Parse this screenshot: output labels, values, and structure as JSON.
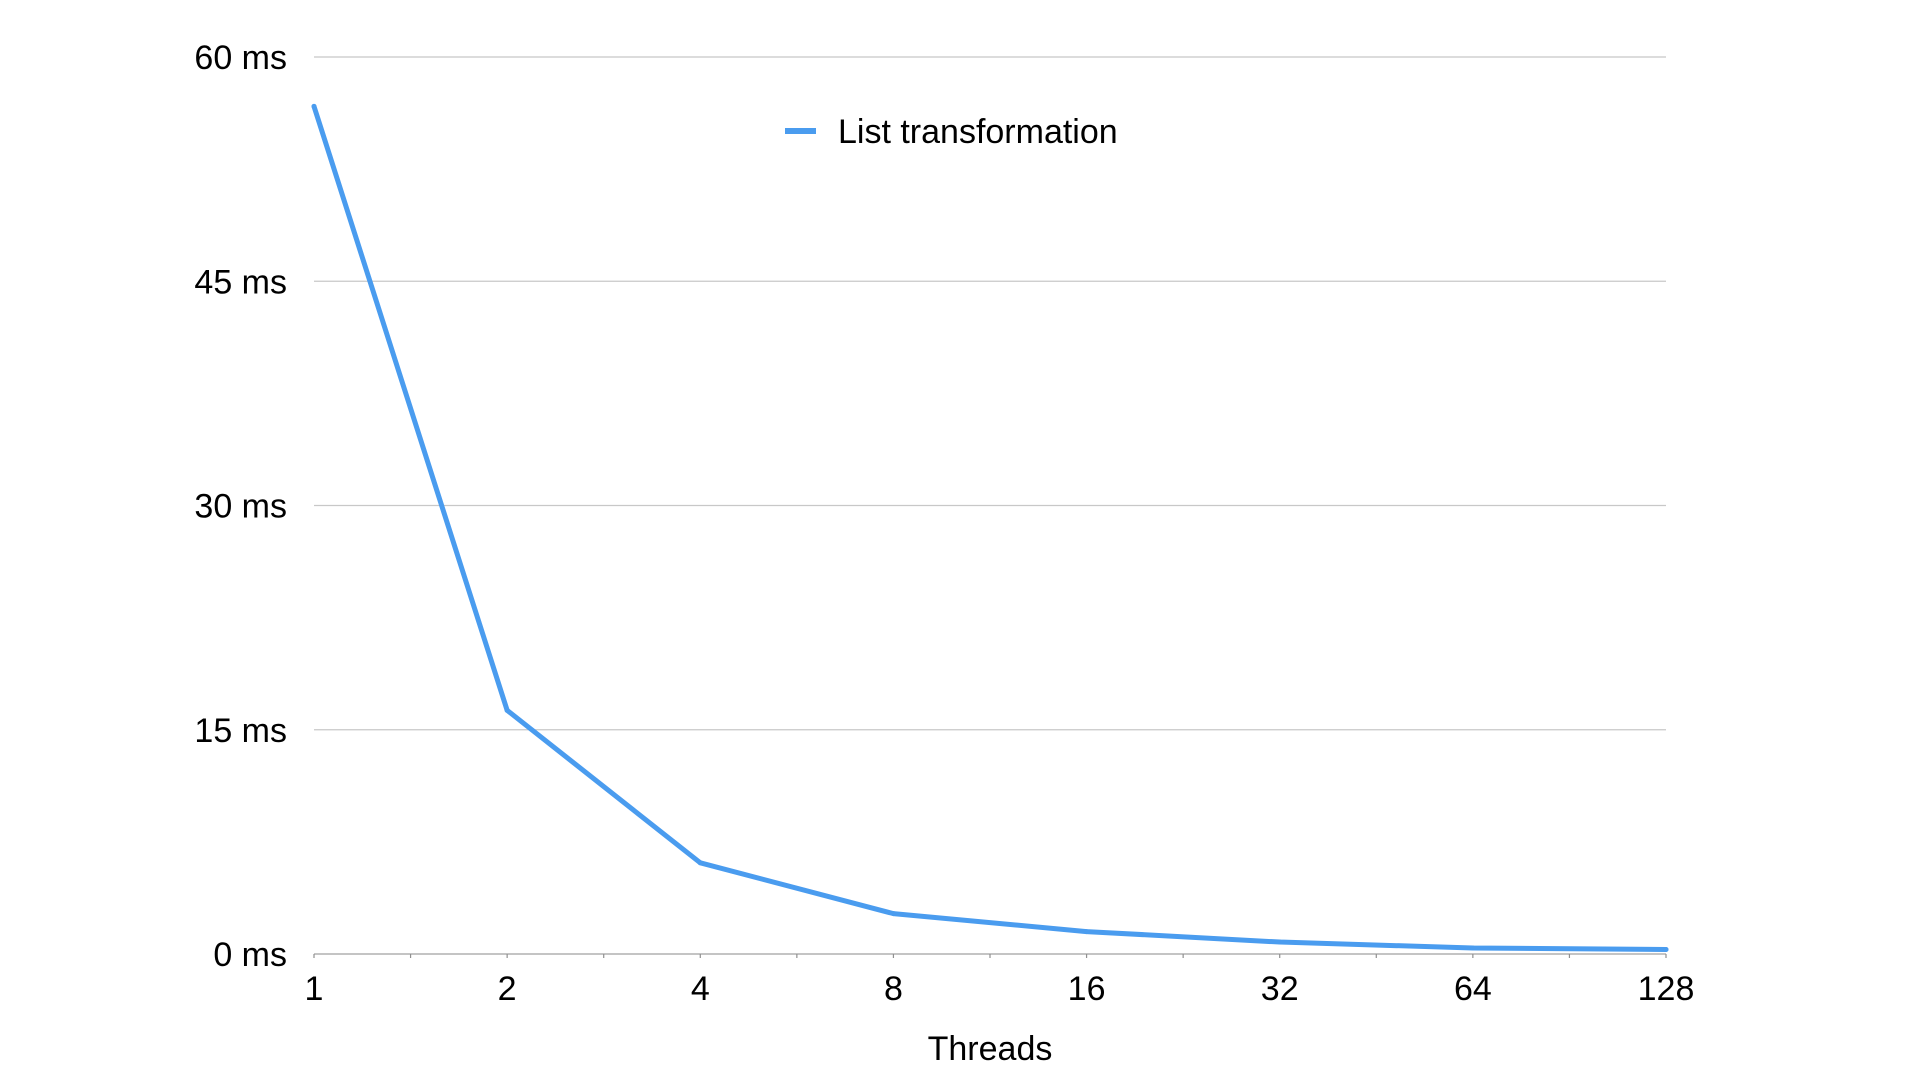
{
  "chart_data": {
    "type": "line",
    "title": "",
    "xlabel": "Threads",
    "ylabel": "",
    "x": [
      1,
      2,
      4,
      8,
      16,
      32,
      64,
      128
    ],
    "x_tick_labels": [
      "1",
      "2",
      "4",
      "8",
      "16",
      "32",
      "64",
      "128"
    ],
    "x_scale": "log2",
    "y_ticks": [
      0,
      15,
      30,
      45,
      60
    ],
    "y_tick_labels": [
      "0 ms",
      "15 ms",
      "30 ms",
      "45 ms",
      "60 ms"
    ],
    "ylim": [
      0,
      60
    ],
    "grid": true,
    "legend_position": "top-center",
    "series": [
      {
        "name": "List transformation",
        "color": "#4a9cef",
        "values": [
          56.7,
          16.3,
          6.1,
          2.7,
          1.5,
          0.8,
          0.4,
          0.3
        ]
      }
    ]
  }
}
